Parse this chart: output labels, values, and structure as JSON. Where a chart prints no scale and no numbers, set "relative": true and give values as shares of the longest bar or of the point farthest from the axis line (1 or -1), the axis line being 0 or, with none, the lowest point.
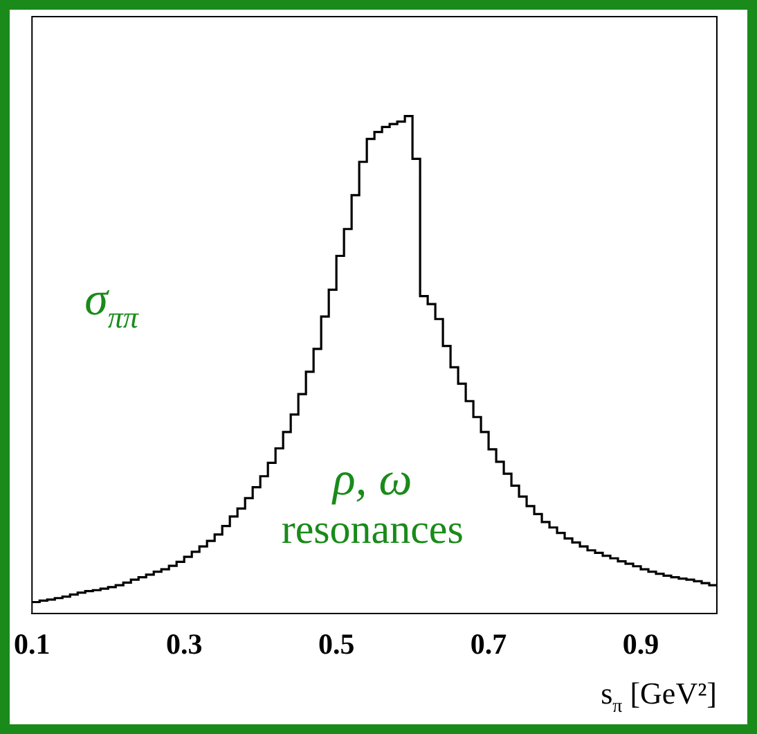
{
  "chart_data": {
    "type": "step",
    "relative": true,
    "xlabel": "s$_{π}$ [GeV²]",
    "annotations": [
      "σ$_{ππ}$",
      "ρ, ω",
      "resonances"
    ],
    "color": "#000000",
    "xlim": [
      0.1,
      1.0
    ],
    "xticks": [
      0.1,
      0.3,
      0.5,
      0.7,
      0.9
    ],
    "x": [
      0.1,
      0.11,
      0.12,
      0.13,
      0.14,
      0.15,
      0.16,
      0.17,
      0.18,
      0.19,
      0.2,
      0.21,
      0.22,
      0.23,
      0.24,
      0.25,
      0.26,
      0.27,
      0.28,
      0.29,
      0.3,
      0.31,
      0.32,
      0.33,
      0.34,
      0.35,
      0.36,
      0.37,
      0.38,
      0.39,
      0.4,
      0.41,
      0.42,
      0.43,
      0.44,
      0.45,
      0.46,
      0.47,
      0.48,
      0.49,
      0.5,
      0.51,
      0.52,
      0.53,
      0.54,
      0.55,
      0.56,
      0.57,
      0.58,
      0.59,
      0.6,
      0.61,
      0.62,
      0.63,
      0.64,
      0.65,
      0.66,
      0.67,
      0.68,
      0.69,
      0.7,
      0.71,
      0.72,
      0.73,
      0.74,
      0.75,
      0.76,
      0.77,
      0.78,
      0.79,
      0.8,
      0.81,
      0.82,
      0.83,
      0.84,
      0.85,
      0.86,
      0.87,
      0.88,
      0.89,
      0.9,
      0.91,
      0.92,
      0.93,
      0.94,
      0.95,
      0.96,
      0.97,
      0.98,
      0.99,
      1.0
    ],
    "values": [
      0.023,
      0.026,
      0.028,
      0.031,
      0.034,
      0.038,
      0.042,
      0.045,
      0.047,
      0.05,
      0.053,
      0.057,
      0.062,
      0.068,
      0.073,
      0.078,
      0.084,
      0.089,
      0.096,
      0.104,
      0.114,
      0.124,
      0.135,
      0.146,
      0.159,
      0.176,
      0.195,
      0.211,
      0.232,
      0.254,
      0.276,
      0.303,
      0.332,
      0.365,
      0.4,
      0.441,
      0.486,
      0.532,
      0.597,
      0.651,
      0.719,
      0.773,
      0.841,
      0.908,
      0.954,
      0.968,
      0.978,
      0.984,
      0.989,
      1,
      0.914,
      0.638,
      0.622,
      0.592,
      0.538,
      0.495,
      0.462,
      0.427,
      0.395,
      0.365,
      0.33,
      0.305,
      0.281,
      0.257,
      0.235,
      0.216,
      0.2,
      0.184,
      0.173,
      0.162,
      0.151,
      0.143,
      0.135,
      0.127,
      0.122,
      0.116,
      0.111,
      0.105,
      0.1,
      0.095,
      0.089,
      0.084,
      0.08,
      0.076,
      0.073,
      0.07,
      0.068,
      0.065,
      0.061,
      0.057,
      0.057
    ]
  }
}
